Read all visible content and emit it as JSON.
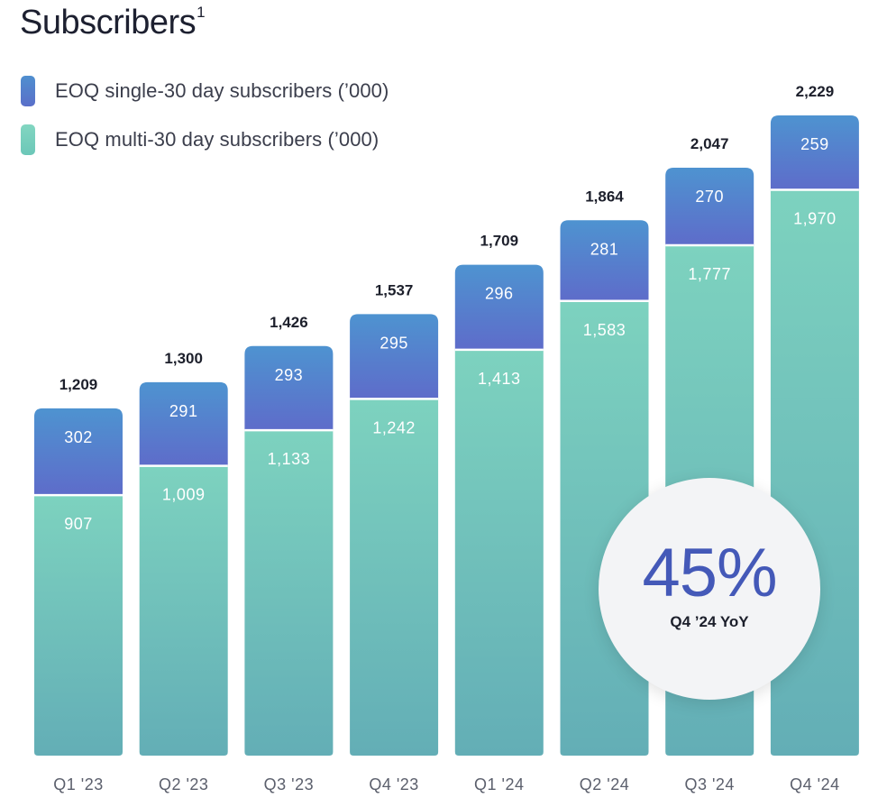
{
  "title": "Subscribers",
  "title_footnote": "1",
  "legend": [
    {
      "label": "EOQ single-30 day subscribers (’000)",
      "color": "#5b74c9"
    },
    {
      "label": "EOQ multi-30 day subscribers  (’000)",
      "color": "#76cdbb"
    }
  ],
  "chart_data": {
    "type": "bar",
    "stacked": true,
    "categories": [
      "Q1 '23",
      "Q2 '23",
      "Q3 '23",
      "Q4 '23",
      "Q1 '24",
      "Q2 '24",
      "Q3 '24",
      "Q4 '24"
    ],
    "series": [
      {
        "name": "EOQ multi-30 day subscribers  (’000)",
        "values": [
          907,
          1009,
          1133,
          1242,
          1413,
          1583,
          1777,
          1970
        ],
        "labels": [
          "907",
          "1,009",
          "1,133",
          "1,242",
          "1,413",
          "1,583",
          "1,777",
          "1,970"
        ]
      },
      {
        "name": "EOQ single-30 day subscribers (’000)",
        "values": [
          302,
          291,
          293,
          295,
          296,
          281,
          270,
          259
        ],
        "labels": [
          "302",
          "291",
          "293",
          "295",
          "296",
          "281",
          "270",
          "259"
        ]
      }
    ],
    "totals": [
      1209,
      1300,
      1426,
      1537,
      1709,
      1864,
      2047,
      2229
    ],
    "total_labels": [
      "1,209",
      "1,300",
      "1,426",
      "1,537",
      "1,709",
      "1,864",
      "2,047",
      "2,229"
    ],
    "ylim": [
      0,
      2229
    ],
    "grid": false,
    "legend_position": "top-left"
  },
  "callout": {
    "value": "45%",
    "label": "Q4 ’24 YoY"
  }
}
